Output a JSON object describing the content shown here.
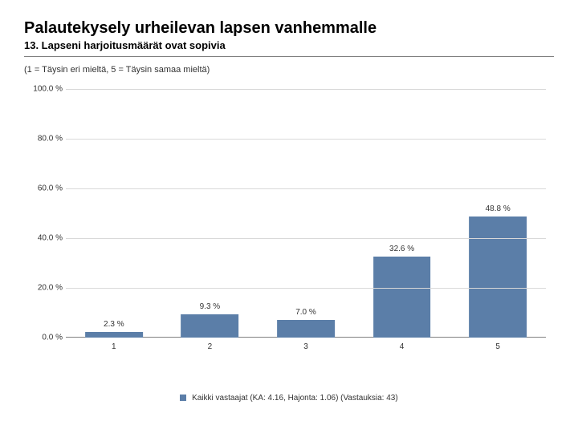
{
  "header": {
    "title": "Palautekysely urheilevan lapsen vanhemmalle",
    "subtitle": "13. Lapseni  harjoitusmäärät ovat sopivia",
    "scale_note": "(1 = Täysin eri mieltä, 5 = Täysin samaa mieltä)"
  },
  "chart": {
    "type": "bar",
    "categories": [
      "1",
      "2",
      "3",
      "4",
      "5"
    ],
    "values": [
      2.3,
      9.3,
      7.0,
      32.6,
      48.8
    ],
    "value_labels": [
      "2.3 %",
      "9.3 %",
      "7.0 %",
      "32.6 %",
      "48.8 %"
    ],
    "bar_color": "#5b7ea8",
    "ylim": [
      0,
      100
    ],
    "yticks": [
      0,
      20,
      40,
      60,
      80,
      100
    ],
    "ytick_labels": [
      "0.0 %",
      "20.0 %",
      "40.0 %",
      "60.0 %",
      "80.0 %",
      "100.0 %"
    ],
    "grid_color": "#d9d9d9",
    "baseline_color": "#808080",
    "background_color": "#ffffff",
    "label_fontsize": 10,
    "bar_width": 0.6
  },
  "legend": {
    "swatch_color": "#5b7ea8",
    "text": "Kaikki vastaajat (KA: 4.16, Hajonta: 1.06) (Vastauksia: 43)"
  }
}
